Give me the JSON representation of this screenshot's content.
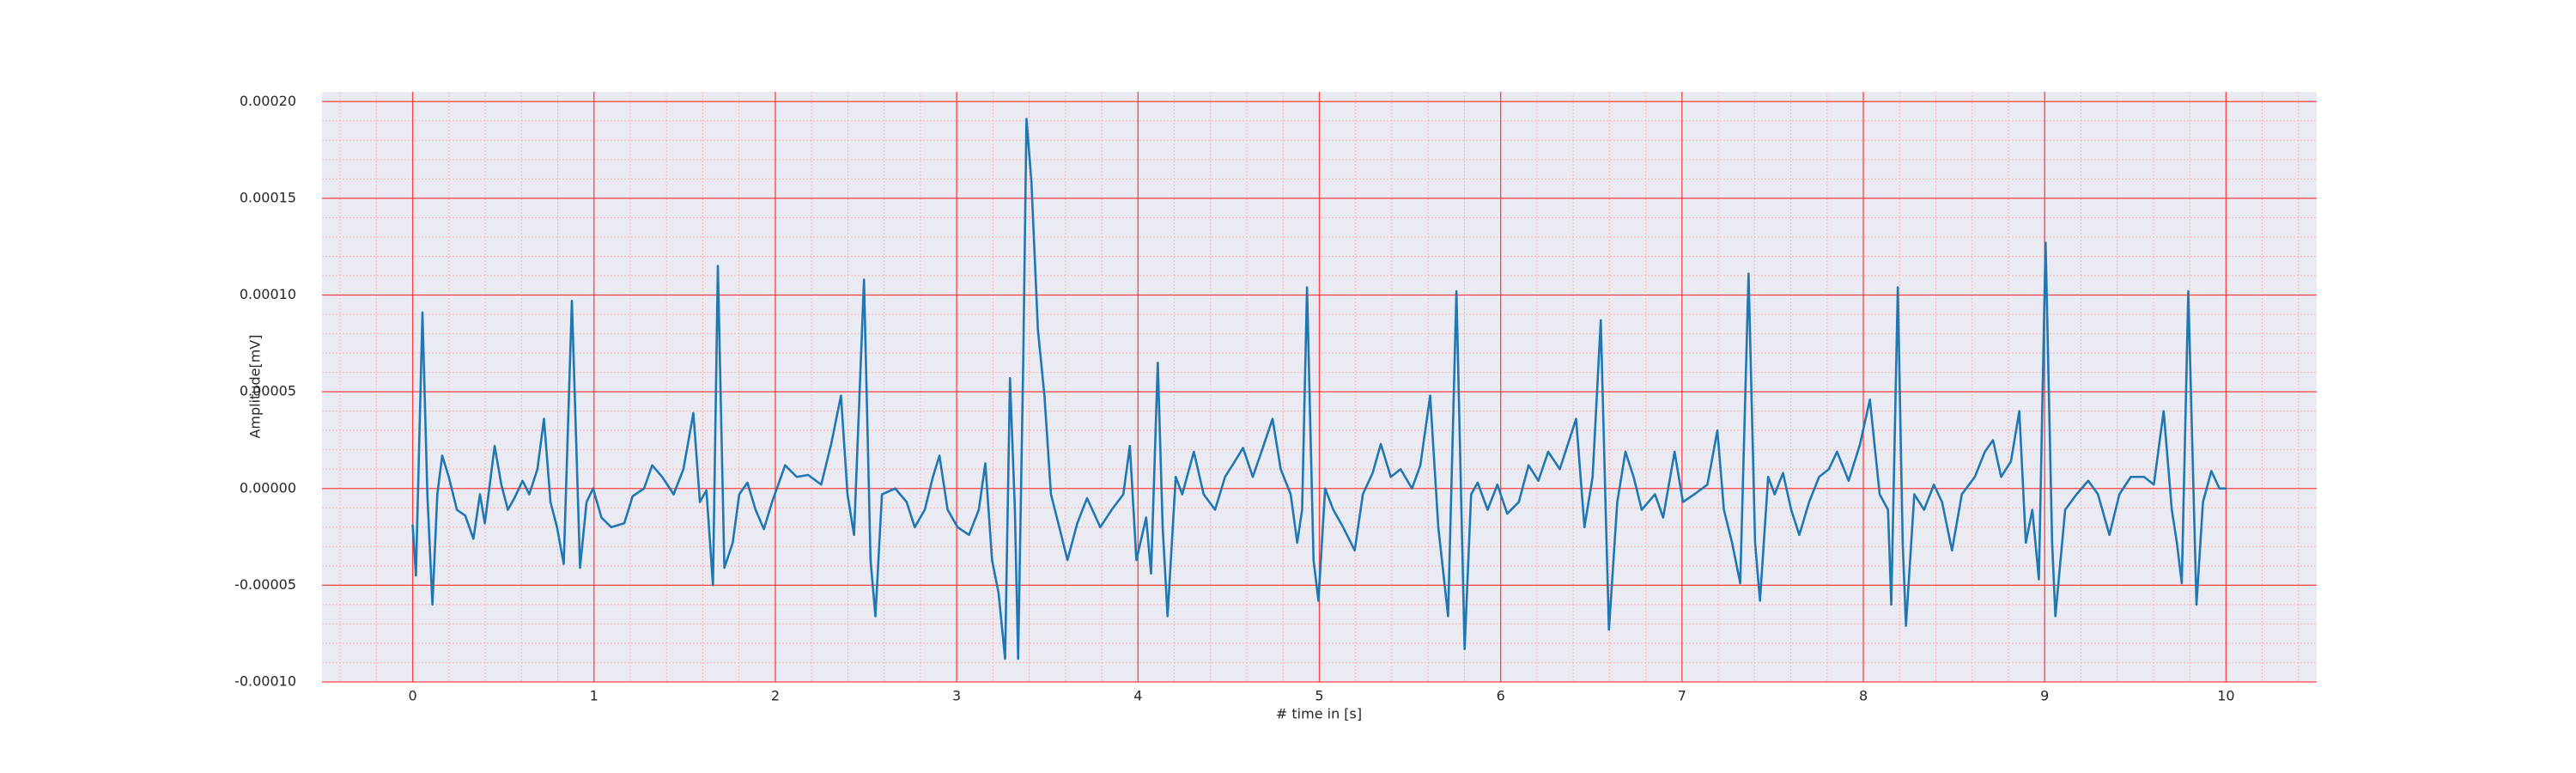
{
  "chart_data": {
    "type": "line",
    "xlabel": "# time in [s]",
    "ylabel": "Amplitude[mV]",
    "xlim": [
      -0.5,
      10.5
    ],
    "ylim": [
      -0.0001,
      0.000205
    ],
    "xticks": [
      0,
      1,
      2,
      3,
      4,
      5,
      6,
      7,
      8,
      9,
      10
    ],
    "yticks": [
      {
        "value": -0.0001,
        "label": "-0.00010"
      },
      {
        "value": -5e-05,
        "label": "-0.00005"
      },
      {
        "value": 0,
        "label": "0.00000"
      },
      {
        "value": 5e-05,
        "label": "0.00005"
      },
      {
        "value": 0.0001,
        "label": "0.00010"
      },
      {
        "value": 0.00015,
        "label": "0.00015"
      },
      {
        "value": 0.0002,
        "label": "0.00020"
      }
    ],
    "background": "#eaeaf2",
    "grid": {
      "major_color": "#ff4040",
      "minor_color": "#ffb4b4",
      "minor_divisions": 5
    },
    "x": [
      0,
      0.018,
      0.054,
      0.081,
      0.109,
      0.136,
      0.163,
      0.199,
      0.244,
      0.29,
      0.335,
      0.371,
      0.398,
      0.452,
      0.489,
      0.525,
      0.561,
      0.606,
      0.643,
      0.688,
      0.724,
      0.76,
      0.796,
      0.833,
      0.878,
      0.923,
      0.959,
      0.995,
      1.041,
      1.095,
      1.167,
      1.213,
      1.276,
      1.321,
      1.376,
      1.439,
      1.493,
      1.548,
      1.584,
      1.62,
      1.656,
      1.683,
      1.719,
      1.765,
      1.801,
      1.846,
      1.891,
      1.937,
      1.982,
      2.054,
      2.118,
      2.181,
      2.253,
      2.308,
      2.362,
      2.398,
      2.434,
      2.489,
      2.525,
      2.552,
      2.588,
      2.661,
      2.724,
      2.769,
      2.824,
      2.869,
      2.905,
      2.95,
      3.005,
      3.068,
      3.122,
      3.158,
      3.195,
      3.231,
      3.267,
      3.294,
      3.321,
      3.339,
      3.367,
      3.385,
      3.412,
      3.448,
      3.484,
      3.52,
      3.566,
      3.611,
      3.665,
      3.719,
      3.792,
      3.855,
      3.919,
      3.955,
      3.991,
      4.045,
      4.072,
      4.109,
      4.136,
      4.163,
      4.208,
      4.244,
      4.308,
      4.362,
      4.425,
      4.48,
      4.534,
      4.579,
      4.633,
      4.688,
      4.742,
      4.787,
      4.842,
      4.878,
      4.905,
      4.932,
      4.968,
      4.995,
      5.032,
      5.077,
      5.131,
      5.195,
      5.24,
      5.294,
      5.339,
      5.394,
      5.448,
      5.511,
      5.557,
      5.611,
      5.656,
      5.71,
      5.756,
      5.801,
      5.837,
      5.873,
      5.928,
      5.982,
      6.036,
      6.1,
      6.154,
      6.208,
      6.262,
      6.326,
      6.371,
      6.416,
      6.462,
      6.507,
      6.552,
      6.579,
      6.597,
      6.643,
      6.688,
      6.733,
      6.778,
      6.851,
      6.896,
      6.959,
      7.005,
      7.068,
      7.14,
      7.195,
      7.231,
      7.276,
      7.321,
      7.367,
      7.403,
      7.43,
      7.475,
      7.511,
      7.557,
      7.602,
      7.647,
      7.701,
      7.756,
      7.81,
      7.855,
      7.919,
      7.982,
      8.036,
      8.09,
      8.136,
      8.154,
      8.19,
      8.217,
      8.235,
      8.281,
      8.335,
      8.389,
      8.434,
      8.489,
      8.543,
      8.615,
      8.67,
      8.715,
      8.76,
      8.814,
      8.86,
      8.896,
      8.932,
      8.968,
      9.005,
      9.041,
      9.059,
      9.113,
      9.176,
      9.24,
      9.294,
      9.357,
      9.412,
      9.475,
      9.548,
      9.602,
      9.656,
      9.701,
      9.729,
      9.756,
      9.792,
      9.837,
      9.873,
      9.919,
      9.964,
      10
    ],
    "series": [
      {
        "color": "#1f77b4",
        "values": [
          -1.9e-05,
          -4.5e-05,
          9.1e-05,
          -3e-06,
          -6e-05,
          -3e-06,
          1.7e-05,
          6e-06,
          -1.1e-05,
          -1.4e-05,
          -2.6e-05,
          -3e-06,
          -1.8e-05,
          2.2e-05,
          2e-06,
          -1.1e-05,
          -5e-06,
          4e-06,
          -3e-06,
          1e-05,
          3.6e-05,
          -7e-06,
          -2e-05,
          -3.9e-05,
          9.7e-05,
          -4.1e-05,
          -7e-06,
          0,
          -1.5e-05,
          -2e-05,
          -1.8e-05,
          -4e-06,
          0,
          1.2e-05,
          6e-06,
          -3e-06,
          1e-05,
          3.9e-05,
          -7e-06,
          -1e-06,
          -5e-05,
          0.000115,
          -4.1e-05,
          -2.8e-05,
          -3e-06,
          3e-06,
          -1.1e-05,
          -2.1e-05,
          -7e-06,
          1.2e-05,
          6e-06,
          7e-06,
          2e-06,
          2.3e-05,
          4.8e-05,
          -3e-06,
          -2.4e-05,
          0.000108,
          -3.7e-05,
          -6.6e-05,
          -3e-06,
          0,
          -7e-06,
          -2e-05,
          -1.1e-05,
          6e-06,
          1.7e-05,
          -1.1e-05,
          -2e-05,
          -2.4e-05,
          -1.1e-05,
          1.3e-05,
          -3.7e-05,
          -5.4e-05,
          -8.8e-05,
          5.7e-05,
          -1.1e-05,
          -8.8e-05,
          6.5e-05,
          0.000191,
          0.000159,
          8.2e-05,
          4.8e-05,
          -3e-06,
          -2e-05,
          -3.7e-05,
          -1.8e-05,
          -5e-06,
          -2e-05,
          -1.1e-05,
          -3e-06,
          2.2e-05,
          -3.7e-05,
          -1.5e-05,
          -4.4e-05,
          6.5e-05,
          -2e-05,
          -6.6e-05,
          6e-06,
          -3e-06,
          1.9e-05,
          -3e-06,
          -1.1e-05,
          6e-06,
          1.4e-05,
          2.1e-05,
          6e-06,
          2.1e-05,
          3.6e-05,
          1e-05,
          -3e-06,
          -2.8e-05,
          -1.1e-05,
          0.000104,
          -3.7e-05,
          -5.8e-05,
          0,
          -1.1e-05,
          -2e-05,
          -3.2e-05,
          -3e-06,
          8e-06,
          2.3e-05,
          6e-06,
          1e-05,
          0,
          1.2e-05,
          4.8e-05,
          -2e-05,
          -6.6e-05,
          0.000102,
          -8.3e-05,
          -3e-06,
          3e-06,
          -1.1e-05,
          2e-06,
          -1.3e-05,
          -7e-06,
          1.2e-05,
          4e-06,
          1.9e-05,
          1e-05,
          2.3e-05,
          3.6e-05,
          -2e-05,
          6e-06,
          8.7e-05,
          -1.1e-05,
          -7.3e-05,
          -7e-06,
          1.9e-05,
          6e-06,
          -1.1e-05,
          -3e-06,
          -1.5e-05,
          1.9e-05,
          -7e-06,
          -3e-06,
          2e-06,
          3e-05,
          -1.1e-05,
          -2.8e-05,
          -4.9e-05,
          0.000111,
          -2.8e-05,
          -5.8e-05,
          6e-06,
          -3e-06,
          8e-06,
          -1.1e-05,
          -2.4e-05,
          -7e-06,
          6e-06,
          1e-05,
          1.9e-05,
          4e-06,
          2.3e-05,
          4.6e-05,
          -3e-06,
          -1.1e-05,
          -6e-05,
          0.000104,
          -2.8e-05,
          -7.1e-05,
          -3e-06,
          -1.1e-05,
          2e-06,
          -7e-06,
          -3.2e-05,
          -3e-06,
          6e-06,
          1.9e-05,
          2.5e-05,
          6e-06,
          1.4e-05,
          4e-05,
          -2.8e-05,
          -1.1e-05,
          -4.7e-05,
          0.000127,
          -2.8e-05,
          -6.6e-05,
          -1.1e-05,
          -3e-06,
          4e-06,
          -3e-06,
          -2.4e-05,
          -3e-06,
          6e-06,
          6e-06,
          2e-06,
          4e-05,
          -1.1e-05,
          -2.8e-05,
          -4.9e-05,
          0.000102,
          -6e-05,
          -7e-06,
          9e-06,
          0,
          0
        ]
      }
    ]
  }
}
